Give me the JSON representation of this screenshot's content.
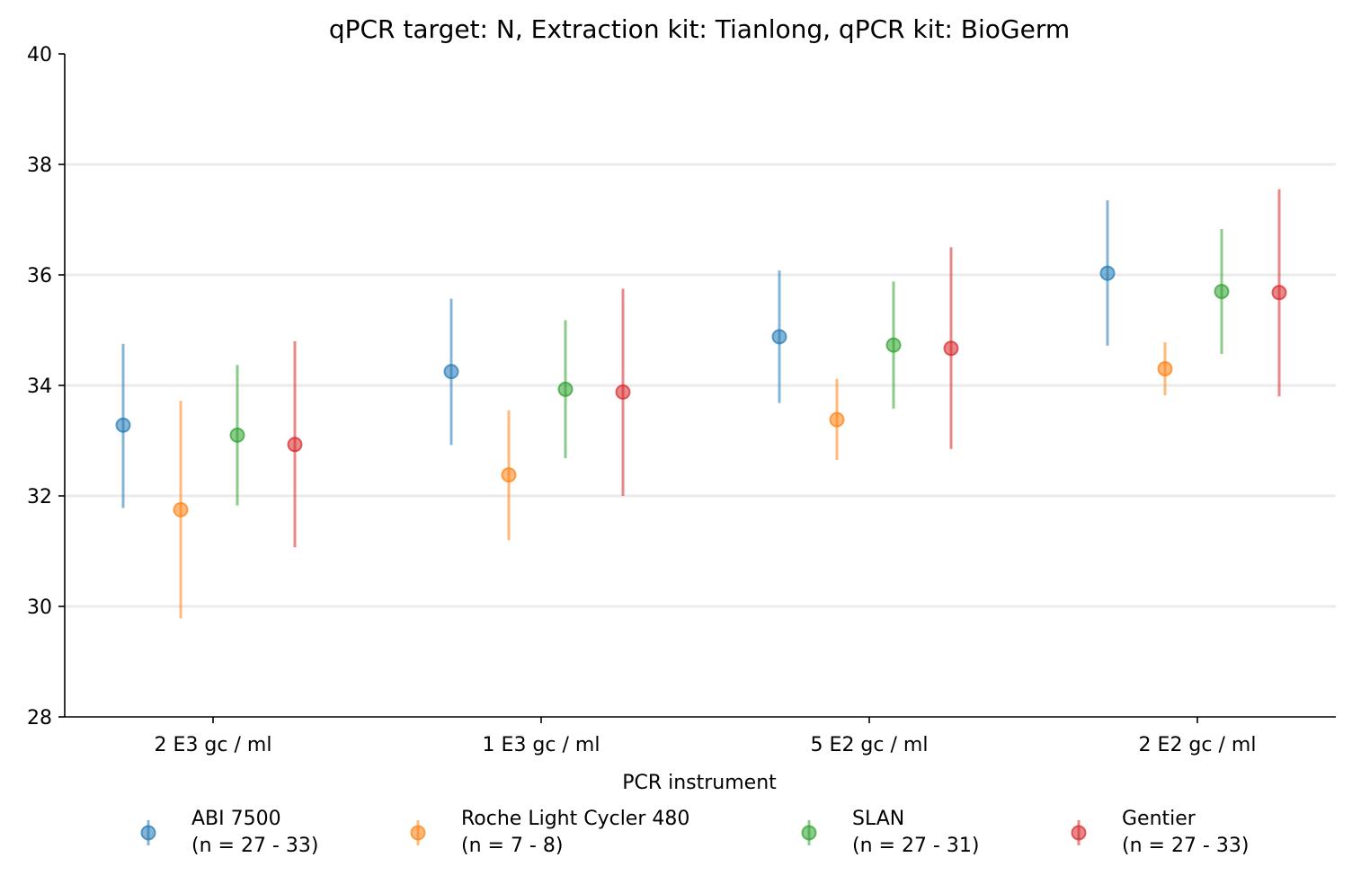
{
  "chart_data": {
    "type": "scatter",
    "title": "qPCR target: N, Extraction kit: Tianlong, qPCR kit: BioGerm",
    "xlabel": "PCR instrument",
    "ylabel": "",
    "categories": [
      "2 E3 gc / ml",
      "1 E3 gc / ml",
      "5 E2 gc / ml",
      "2 E2 gc / ml"
    ],
    "ylim": [
      28,
      40
    ],
    "yticks": [
      28,
      30,
      32,
      34,
      36,
      38,
      40
    ],
    "grid": "horizontal",
    "legend_position": "bottom",
    "series": [
      {
        "name": "ABI 7500",
        "n_label": "(n = 27 - 33)",
        "color": "#1f77b4",
        "values": [
          33.28,
          34.25,
          34.88,
          36.03
        ],
        "lower": [
          31.78,
          32.92,
          33.68,
          34.72
        ],
        "upper": [
          34.75,
          35.57,
          36.08,
          37.35
        ]
      },
      {
        "name": "Roche Light Cycler 480",
        "n_label": "(n = 7 - 8)",
        "color": "#ff7f0e",
        "values": [
          31.75,
          32.38,
          33.38,
          34.3
        ],
        "lower": [
          29.78,
          31.2,
          32.65,
          33.82
        ],
        "upper": [
          33.72,
          33.55,
          34.12,
          34.78
        ]
      },
      {
        "name": "SLAN",
        "n_label": "(n = 27 - 31)",
        "color": "#2ca02c",
        "values": [
          33.1,
          33.93,
          34.73,
          35.7
        ],
        "lower": [
          31.83,
          32.68,
          33.58,
          34.57
        ],
        "upper": [
          34.37,
          35.18,
          35.88,
          36.83
        ]
      },
      {
        "name": "Gentier",
        "n_label": "(n = 27 - 33)",
        "color": "#d62728",
        "values": [
          32.93,
          33.88,
          34.67,
          35.68
        ],
        "lower": [
          31.07,
          32.0,
          32.85,
          33.8
        ],
        "upper": [
          34.8,
          35.75,
          36.5,
          37.55
        ]
      }
    ]
  }
}
